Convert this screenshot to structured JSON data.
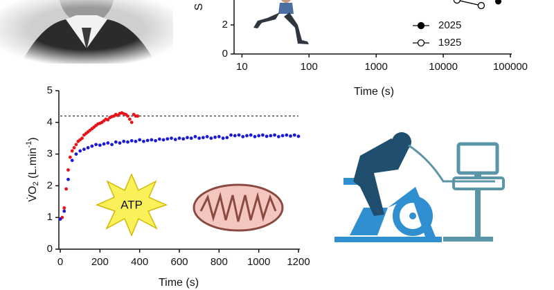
{
  "chart_data": [
    {
      "type": "line",
      "xscale": "log",
      "xlim": [
        8,
        100000
      ],
      "ylim": [
        0,
        4
      ],
      "xticks": [
        10,
        100,
        1000,
        10000,
        100000
      ],
      "yticks": [
        0,
        2
      ],
      "xlabel": "Time (s)",
      "ylabel": "S",
      "legend": "bottom-right",
      "series": [
        {
          "name": "2025",
          "color": "#000000",
          "marker": "filled",
          "x": [
            66000
          ],
          "values": [
            3.62
          ]
        },
        {
          "name": "1925",
          "color": "#000000",
          "marker": "open",
          "x": [
            16000,
            36800
          ],
          "values": [
            3.71,
            3.33
          ]
        }
      ]
    },
    {
      "type": "scatter",
      "xlim": [
        0,
        1200
      ],
      "ylim": [
        0,
        5
      ],
      "xticks": [
        0,
        200,
        400,
        600,
        800,
        1000,
        1200
      ],
      "yticks": [
        0,
        1,
        2,
        3,
        4,
        5
      ],
      "xlabel": "Time (s)",
      "ylabel": [
        "V̇O",
        "2",
        " (L.min",
        "-1",
        ")"
      ],
      "reference_line": 4.2,
      "annotations": [
        "ATP"
      ],
      "series": [
        {
          "color": "#e8141b",
          "x": [
            0,
            10,
            20,
            30,
            40,
            50,
            60,
            70,
            80,
            90,
            100,
            110,
            120,
            130,
            140,
            150,
            160,
            170,
            180,
            190,
            200,
            210,
            220,
            230,
            240,
            250,
            260,
            270,
            280,
            290,
            300,
            310,
            320,
            330,
            340,
            350,
            360,
            370,
            380,
            390
          ],
          "values": [
            0.95,
            1.0,
            1.3,
            1.9,
            2.5,
            2.9,
            3.1,
            3.2,
            3.3,
            3.4,
            3.45,
            3.5,
            3.6,
            3.65,
            3.7,
            3.75,
            3.8,
            3.85,
            3.9,
            3.95,
            3.97,
            4.0,
            4.05,
            4.1,
            4.08,
            4.15,
            4.18,
            4.2,
            4.25,
            4.22,
            4.28,
            4.3,
            4.27,
            4.25,
            4.2,
            4.1,
            4.0,
            4.25,
            4.2,
            4.2
          ]
        },
        {
          "color": "#1a1ad6",
          "x": [
            0,
            20,
            40,
            60,
            80,
            100,
            120,
            140,
            160,
            180,
            200,
            220,
            240,
            260,
            280,
            300,
            320,
            340,
            360,
            380,
            400,
            420,
            440,
            460,
            480,
            500,
            520,
            540,
            560,
            580,
            600,
            620,
            640,
            660,
            680,
            700,
            720,
            740,
            760,
            780,
            800,
            820,
            840,
            860,
            880,
            900,
            920,
            940,
            960,
            980,
            1000,
            1020,
            1040,
            1060,
            1080,
            1100,
            1120,
            1140,
            1160,
            1180,
            1200
          ],
          "values": [
            0.95,
            1.2,
            2.2,
            2.8,
            3.0,
            3.1,
            3.15,
            3.2,
            3.25,
            3.3,
            3.28,
            3.32,
            3.35,
            3.3,
            3.38,
            3.35,
            3.4,
            3.38,
            3.42,
            3.4,
            3.45,
            3.4,
            3.43,
            3.45,
            3.42,
            3.47,
            3.45,
            3.48,
            3.5,
            3.46,
            3.5,
            3.48,
            3.52,
            3.5,
            3.55,
            3.5,
            3.52,
            3.55,
            3.5,
            3.53,
            3.55,
            3.5,
            3.52,
            3.6,
            3.58,
            3.6,
            3.55,
            3.58,
            3.6,
            3.55,
            3.58,
            3.6,
            3.56,
            3.58,
            3.6,
            3.55,
            3.58,
            3.6,
            3.57,
            3.6,
            3.56
          ]
        }
      ]
    }
  ]
}
